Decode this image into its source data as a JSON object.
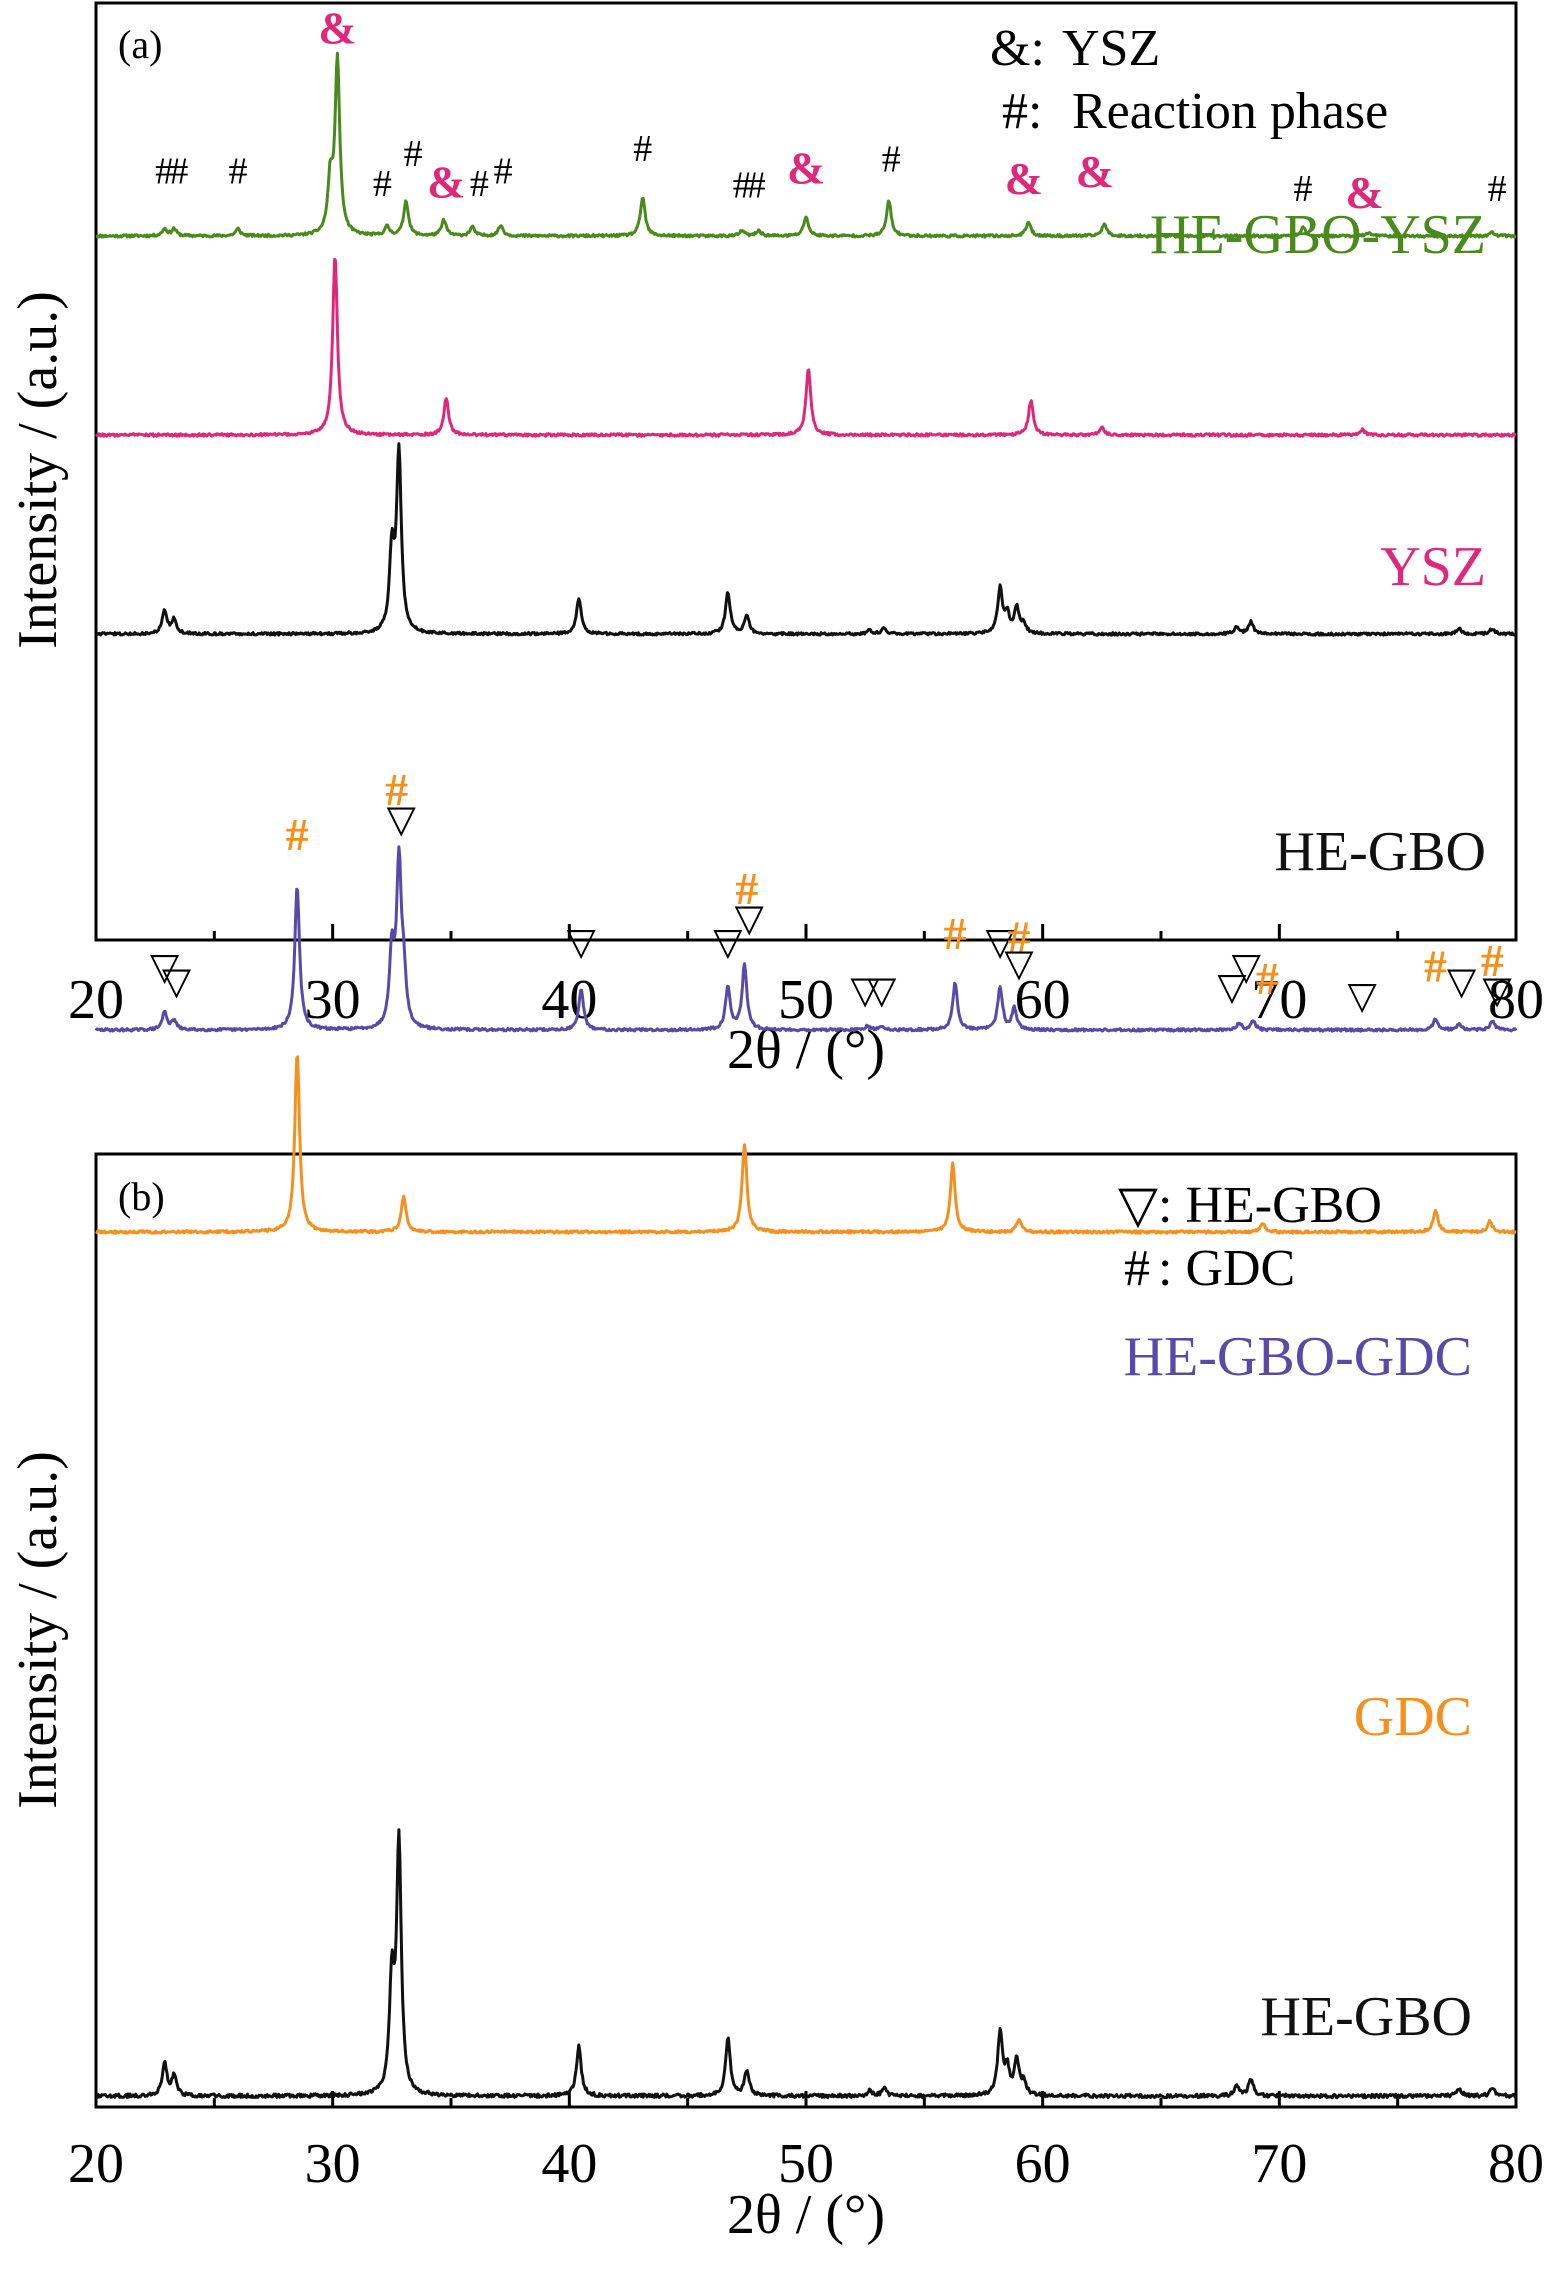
{
  "colors": {
    "ysz": "#e0287a",
    "reaction": "#4a8a1c",
    "hegbo": "#111111",
    "gdc": "#f5901e",
    "hegbo_gdc": "#5a4aa8"
  },
  "chart_data": [
    {
      "type": "line",
      "panel_label": "(a)",
      "xlabel": "2θ / (°)",
      "ylabel": "Intensity / (a.u.)",
      "xlim": [
        20,
        80
      ],
      "xticks": [
        "20",
        "30",
        "40",
        "50",
        "60",
        "70",
        "80"
      ],
      "legend": [
        {
          "symbol": "&:",
          "text": "YSZ"
        },
        {
          "symbol": "#:",
          "text": "Reaction phase"
        }
      ],
      "series": [
        {
          "name": "HE-GBO-YSZ",
          "color_key": "reaction",
          "peaks": [
            [
              22.9,
              0.04
            ],
            [
              23.3,
              0.04
            ],
            [
              26.0,
              0.04
            ],
            [
              29.9,
              0.3
            ],
            [
              30.2,
              1.0
            ],
            [
              32.3,
              0.05
            ],
            [
              33.1,
              0.2
            ],
            [
              34.7,
              0.09
            ],
            [
              35.9,
              0.05
            ],
            [
              37.1,
              0.06
            ],
            [
              43.1,
              0.22
            ],
            [
              47.3,
              0.03
            ],
            [
              48.0,
              0.03
            ],
            [
              50.0,
              0.11
            ],
            [
              53.5,
              0.2
            ],
            [
              59.4,
              0.08
            ],
            [
              62.6,
              0.07
            ],
            [
              71.0,
              0.05
            ],
            [
              73.8,
              0.02
            ],
            [
              79.0,
              0.02
            ]
          ]
        },
        {
          "name": "YSZ",
          "color_key": "ysz",
          "peaks": [
            [
              30.1,
              1.0
            ],
            [
              34.8,
              0.2
            ],
            [
              50.1,
              0.37
            ],
            [
              59.5,
              0.19
            ],
            [
              62.5,
              0.04
            ],
            [
              73.5,
              0.03
            ]
          ]
        },
        {
          "name": "HE-GBO",
          "color_key": "hegbo",
          "peaks": [
            [
              22.9,
              0.13
            ],
            [
              23.3,
              0.08
            ],
            [
              32.5,
              0.44
            ],
            [
              32.8,
              1.0
            ],
            [
              40.4,
              0.2
            ],
            [
              46.7,
              0.23
            ],
            [
              47.5,
              0.1
            ],
            [
              52.7,
              0.02
            ],
            [
              53.3,
              0.03
            ],
            [
              58.2,
              0.25
            ],
            [
              58.5,
              0.1
            ],
            [
              58.9,
              0.14
            ],
            [
              59.2,
              0.05
            ],
            [
              68.2,
              0.04
            ],
            [
              68.8,
              0.07
            ],
            [
              77.6,
              0.03
            ],
            [
              79.0,
              0.03
            ]
          ]
        }
      ],
      "annotations": [
        {
          "text": "#",
          "x": 22.9,
          "y": 0.3,
          "series": "HE-GBO-YSZ"
        },
        {
          "text": "#",
          "x": 23.5,
          "y": 0.3,
          "series": "HE-GBO-YSZ"
        },
        {
          "text": "#",
          "x": 26.0,
          "y": 0.3,
          "series": "HE-GBO-YSZ"
        },
        {
          "text": "&",
          "x": 30.2,
          "y": 1.1,
          "series": "HE-GBO-YSZ"
        },
        {
          "text": "#",
          "x": 32.1,
          "y": 0.23,
          "series": "HE-GBO-YSZ"
        },
        {
          "text": "#",
          "x": 33.4,
          "y": 0.4,
          "series": "HE-GBO-YSZ"
        },
        {
          "text": "&",
          "x": 34.8,
          "y": 0.22,
          "series": "HE-GBO-YSZ"
        },
        {
          "text": "#",
          "x": 36.2,
          "y": 0.23,
          "series": "HE-GBO-YSZ"
        },
        {
          "text": "#",
          "x": 37.2,
          "y": 0.3,
          "series": "HE-GBO-YSZ"
        },
        {
          "text": "#",
          "x": 43.1,
          "y": 0.43,
          "series": "HE-GBO-YSZ"
        },
        {
          "text": "#",
          "x": 47.3,
          "y": 0.22,
          "series": "HE-GBO-YSZ"
        },
        {
          "text": "#",
          "x": 47.9,
          "y": 0.22,
          "series": "HE-GBO-YSZ"
        },
        {
          "text": "&",
          "x": 50.0,
          "y": 0.3,
          "series": "HE-GBO-YSZ"
        },
        {
          "text": "#",
          "x": 53.6,
          "y": 0.37,
          "series": "HE-GBO-YSZ"
        },
        {
          "text": "&",
          "x": 59.2,
          "y": 0.24,
          "series": "HE-GBO-YSZ"
        },
        {
          "text": "&",
          "x": 62.2,
          "y": 0.28,
          "series": "HE-GBO-YSZ"
        },
        {
          "text": "#",
          "x": 71.0,
          "y": 0.2,
          "series": "HE-GBO-YSZ"
        },
        {
          "text": "&",
          "x": 73.6,
          "y": 0.16,
          "series": "HE-GBO-YSZ"
        },
        {
          "text": "#",
          "x": 79.2,
          "y": 0.2,
          "series": "HE-GBO-YSZ"
        }
      ]
    },
    {
      "type": "line",
      "panel_label": "(b)",
      "xlabel": "2θ / (°)",
      "ylabel": "Intensity / (a.u.)",
      "xlim": [
        20,
        80
      ],
      "xticks": [
        "20",
        "30",
        "40",
        "50",
        "60",
        "70",
        "80"
      ],
      "legend": [
        {
          "symbol": "▽",
          "text": ": HE-GBO"
        },
        {
          "symbol": "#",
          "text": ": GDC"
        }
      ],
      "series": [
        {
          "name": "HE-GBO-GDC",
          "color_key": "hegbo_gdc",
          "peaks": [
            [
              22.9,
              0.1
            ],
            [
              23.3,
              0.05
            ],
            [
              28.5,
              0.8
            ],
            [
              32.5,
              0.42
            ],
            [
              32.8,
              0.9
            ],
            [
              33.0,
              0.25
            ],
            [
              40.5,
              0.22
            ],
            [
              46.7,
              0.24
            ],
            [
              47.4,
              0.36
            ],
            [
              52.6,
              0.02
            ],
            [
              53.2,
              0.02
            ],
            [
              56.3,
              0.26
            ],
            [
              58.2,
              0.24
            ],
            [
              58.8,
              0.12
            ],
            [
              68.3,
              0.04
            ],
            [
              68.9,
              0.05
            ],
            [
              76.6,
              0.06
            ],
            [
              77.6,
              0.03
            ],
            [
              79.0,
              0.05
            ]
          ]
        },
        {
          "name": "GDC",
          "color_key": "gdc",
          "peaks": [
            [
              28.5,
              1.0
            ],
            [
              33.0,
              0.2
            ],
            [
              47.4,
              0.49
            ],
            [
              56.2,
              0.38
            ],
            [
              59.0,
              0.07
            ],
            [
              69.3,
              0.05
            ],
            [
              76.6,
              0.12
            ],
            [
              78.9,
              0.06
            ]
          ]
        },
        {
          "name": "HE-GBO",
          "color_key": "hegbo",
          "peaks": [
            [
              22.9,
              0.13
            ],
            [
              23.3,
              0.08
            ],
            [
              32.5,
              0.44
            ],
            [
              32.8,
              1.0
            ],
            [
              40.4,
              0.2
            ],
            [
              46.7,
              0.23
            ],
            [
              47.5,
              0.1
            ],
            [
              52.7,
              0.02
            ],
            [
              53.3,
              0.03
            ],
            [
              58.2,
              0.25
            ],
            [
              58.5,
              0.1
            ],
            [
              58.9,
              0.14
            ],
            [
              59.2,
              0.05
            ],
            [
              68.2,
              0.04
            ],
            [
              68.8,
              0.07
            ],
            [
              77.6,
              0.03
            ],
            [
              79.0,
              0.03
            ]
          ]
        }
      ],
      "annotations": [
        {
          "text": "▽",
          "x": 22.9,
          "y": 0.28,
          "series": "HE-GBO-GDC"
        },
        {
          "text": "▽",
          "x": 23.4,
          "y": 0.2,
          "series": "HE-GBO-GDC"
        },
        {
          "text": "#",
          "x": 28.5,
          "y": 1.0,
          "series": "HE-GBO-GDC"
        },
        {
          "text": "#",
          "x": 32.7,
          "y": 1.25,
          "series": "HE-GBO-GDC"
        },
        {
          "text": "▽",
          "x": 32.9,
          "y": 1.1,
          "series": "HE-GBO-GDC"
        },
        {
          "text": "▽",
          "x": 40.5,
          "y": 0.42,
          "series": "HE-GBO-GDC"
        },
        {
          "text": "▽",
          "x": 46.7,
          "y": 0.42,
          "series": "HE-GBO-GDC"
        },
        {
          "text": "#",
          "x": 47.5,
          "y": 0.7,
          "series": "HE-GBO-GDC"
        },
        {
          "text": "▽",
          "x": 47.6,
          "y": 0.55,
          "series": "HE-GBO-GDC"
        },
        {
          "text": "▽",
          "x": 52.5,
          "y": 0.15,
          "series": "HE-GBO-GDC"
        },
        {
          "text": "▽",
          "x": 53.2,
          "y": 0.15,
          "series": "HE-GBO-GDC"
        },
        {
          "text": "#",
          "x": 56.3,
          "y": 0.45,
          "series": "HE-GBO-GDC"
        },
        {
          "text": "▽",
          "x": 58.2,
          "y": 0.42,
          "series": "HE-GBO-GDC"
        },
        {
          "text": "#",
          "x": 59.0,
          "y": 0.43,
          "series": "HE-GBO-GDC"
        },
        {
          "text": "▽",
          "x": 59.0,
          "y": 0.3,
          "series": "HE-GBO-GDC"
        },
        {
          "text": "▽",
          "x": 68.0,
          "y": 0.17,
          "series": "HE-GBO-GDC"
        },
        {
          "text": "▽",
          "x": 68.6,
          "y": 0.28,
          "series": "HE-GBO-GDC"
        },
        {
          "text": "#",
          "x": 69.5,
          "y": 0.2,
          "series": "HE-GBO-GDC"
        },
        {
          "text": "▽",
          "x": 73.5,
          "y": 0.12,
          "series": "HE-GBO-GDC"
        },
        {
          "text": "#",
          "x": 76.6,
          "y": 0.27,
          "series": "HE-GBO-GDC"
        },
        {
          "text": "▽",
          "x": 77.7,
          "y": 0.2,
          "series": "HE-GBO-GDC"
        },
        {
          "text": "#",
          "x": 79.0,
          "y": 0.3,
          "series": "HE-GBO-GDC"
        },
        {
          "text": "▽",
          "x": 79.2,
          "y": 0.15,
          "series": "HE-GBO-GDC"
        }
      ]
    }
  ]
}
